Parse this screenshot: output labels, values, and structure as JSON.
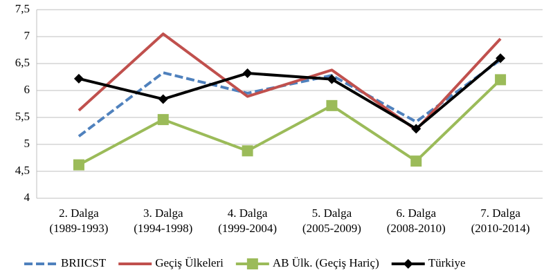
{
  "chart_data": {
    "type": "line",
    "categories": [
      "2. Dalga (1989-1993)",
      "3. Dalga (1994-1998)",
      "4. Dalga (1999-2004)",
      "5. Dalga (2005-2009)",
      "6. Dalga (2008-2010)",
      "7. Dalga (2010-2014)"
    ],
    "series": [
      {
        "name": "BRIICST",
        "color": "#4f81bd",
        "dashed": true,
        "marker": "none",
        "values": [
          5.15,
          6.33,
          5.95,
          6.28,
          5.42,
          6.57
        ]
      },
      {
        "name": "Geçiş Ülkeleri",
        "color": "#c0504d",
        "marker": "none",
        "values": [
          5.63,
          7.05,
          5.89,
          6.38,
          5.27,
          6.96
        ]
      },
      {
        "name": "AB Ülk. (Geçiş Hariç)",
        "color": "#9bbb59",
        "marker": "square",
        "values": [
          4.62,
          5.46,
          4.88,
          5.72,
          4.69,
          6.2
        ]
      },
      {
        "name": "Türkiye",
        "color": "#000000",
        "marker": "diamond",
        "values": [
          6.22,
          5.84,
          6.32,
          6.21,
          5.29,
          6.6
        ]
      }
    ],
    "ylim": [
      4,
      7.5
    ],
    "yticks": [
      4,
      {
        "value": 4.5,
        "label": "4,5"
      },
      5,
      {
        "value": 5.5,
        "label": "5,5"
      },
      6,
      {
        "value": 6.5,
        "label": "6,5"
      },
      7,
      {
        "value": 7.5,
        "label": "7,5"
      }
    ],
    "grid": true,
    "legend": "bottom"
  }
}
